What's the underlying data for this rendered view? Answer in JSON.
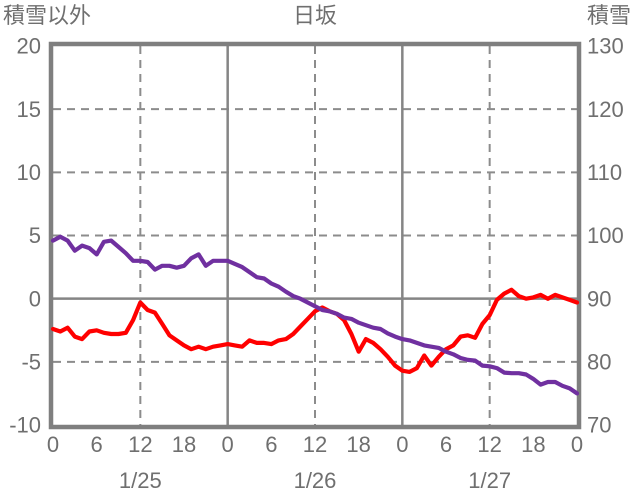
{
  "chart_data": {
    "type": "line",
    "title": "日坂",
    "left_axis": {
      "title": "積雪以外",
      "min": -10,
      "max": 20,
      "ticks": [
        20,
        15,
        10,
        5,
        0,
        -5,
        -10
      ],
      "dashed_gridlines": [
        15,
        10,
        5,
        -5
      ],
      "solid_gridlines": [
        0
      ]
    },
    "right_axis": {
      "title": "積雪",
      "min": 70,
      "max": 130,
      "ticks": [
        130,
        120,
        110,
        100,
        90,
        80,
        70
      ]
    },
    "x_axis": {
      "start_hour": 0,
      "end_hour": 72,
      "hour_label_interval": 6,
      "hour_labels": [
        "0",
        "6",
        "12",
        "18",
        "0",
        "6",
        "12",
        "18",
        "0",
        "6",
        "12",
        "18",
        "0"
      ],
      "date_labels": [
        "1/25",
        "1/26",
        "1/27"
      ],
      "date_label_hours": [
        12,
        36,
        60
      ],
      "dashed_gridline_hours": [
        12,
        36,
        60
      ],
      "solid_gridline_hours": [
        24,
        48
      ]
    },
    "series": [
      {
        "name": "積雪以外",
        "axis": "left",
        "color": "#ff0000",
        "x_start_hour": 0,
        "x_step_hours": 1,
        "values": [
          -2.4,
          -2.6,
          -2.3,
          -3.0,
          -3.2,
          -2.6,
          -2.5,
          -2.7,
          -2.8,
          -2.8,
          -2.7,
          -1.7,
          -0.3,
          -0.9,
          -1.1,
          -2.0,
          -2.9,
          -3.3,
          -3.7,
          -4.0,
          -3.8,
          -4.0,
          -3.8,
          -3.7,
          -3.6,
          -3.7,
          -3.8,
          -3.3,
          -3.5,
          -3.5,
          -3.6,
          -3.3,
          -3.2,
          -2.8,
          -2.2,
          -1.6,
          -1.0,
          -0.7,
          -1.0,
          -1.2,
          -1.7,
          -2.8,
          -4.2,
          -3.2,
          -3.5,
          -4.0,
          -4.6,
          -5.3,
          -5.7,
          -5.8,
          -5.5,
          -4.5,
          -5.3,
          -4.6,
          -4.0,
          -3.7,
          -3.0,
          -2.9,
          -3.1,
          -2.0,
          -1.3,
          -0.1,
          0.4,
          0.7,
          0.2,
          0.0,
          0.1,
          0.3,
          0.0,
          0.3,
          0.1,
          -0.1,
          -0.3
        ]
      },
      {
        "name": "積雪",
        "axis": "right",
        "color": "#7030a0",
        "x_start_hour": 0,
        "x_step_hours": 1,
        "values": [
          99.2,
          99.8,
          99.2,
          97.6,
          98.4,
          98.0,
          97.0,
          99.0,
          99.2,
          98.2,
          97.2,
          96.0,
          96.0,
          95.8,
          94.6,
          95.2,
          95.2,
          94.9,
          95.2,
          96.4,
          97.0,
          95.2,
          96.0,
          96.0,
          96.0,
          95.5,
          95.0,
          94.2,
          93.4,
          93.2,
          92.4,
          91.9,
          91.1,
          90.4,
          90.0,
          89.4,
          88.8,
          88.2,
          88.0,
          87.6,
          87.0,
          86.8,
          86.2,
          85.8,
          85.4,
          85.2,
          84.5,
          84.0,
          83.6,
          83.4,
          83.0,
          82.6,
          82.4,
          82.2,
          81.6,
          81.2,
          80.6,
          80.3,
          80.2,
          79.4,
          79.3,
          79.0,
          78.3,
          78.2,
          78.2,
          78.0,
          77.3,
          76.4,
          76.8,
          76.8,
          76.2,
          75.8,
          75.0
        ]
      }
    ],
    "colors": {
      "red_series": "#ff0000",
      "purple_series": "#7030a0",
      "axis_text": "#6f6f6f",
      "grid": "#8c8c8c",
      "border": "#7f7f7f",
      "background": "#ffffff"
    },
    "legend": "none",
    "grid": "on"
  }
}
